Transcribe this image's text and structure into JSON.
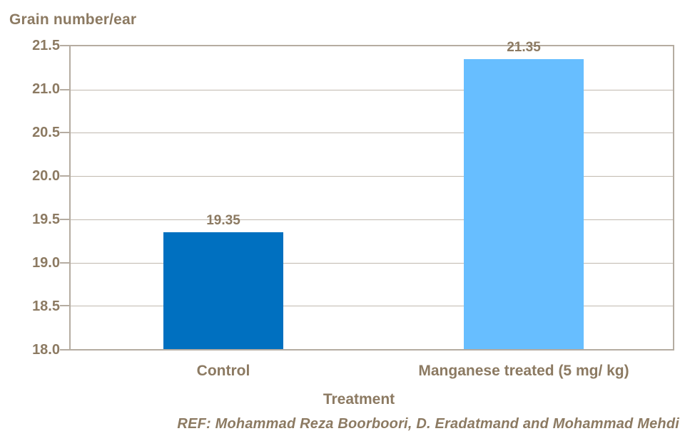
{
  "colors": {
    "text_brown": "#8c7a62",
    "axis_line": "#b5aca1",
    "gridline": "#c1b9af",
    "control_bar": "#0070c0",
    "treated_bar": "#67beff",
    "background": "#ffffff"
  },
  "chart_data": {
    "type": "bar",
    "title": "Grain number/ear",
    "xlabel": "Treatment",
    "ylabel": "Grain number/ear",
    "categories": [
      "Control",
      "Manganese treated (5 mg/ kg)"
    ],
    "values": [
      19.35,
      21.35
    ],
    "data_labels": [
      "19.35",
      "21.35"
    ],
    "bar_colors": [
      "#0070c0",
      "#67beff"
    ],
    "ylim": [
      18.0,
      21.5
    ],
    "ytick_step": 0.5,
    "yticks": [
      "21.5",
      "21.0",
      "20.5",
      "20.0",
      "19.5",
      "19.0",
      "18.5",
      "18.0"
    ],
    "grid": true,
    "legend": "none",
    "footer": "REF: Mohammad Reza Boorboori, D. Eradatmand and Mohammad Mehdi"
  }
}
